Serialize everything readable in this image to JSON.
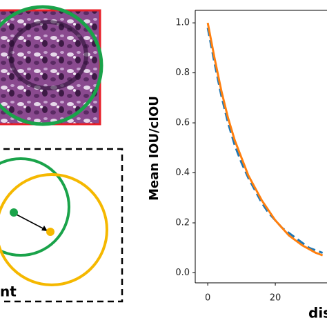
{
  "chart_data": {
    "type": "line",
    "y_label": "Mean IOU/cIOU",
    "x_label": "dis",
    "x": [
      0,
      2,
      4,
      6,
      8,
      10,
      12,
      14,
      16,
      18,
      20,
      22,
      24,
      26,
      28,
      30,
      32,
      34
    ],
    "series": [
      {
        "color": "#1f77b4",
        "dash": true,
        "values": [
          0.98,
          0.84,
          0.71,
          0.6,
          0.51,
          0.44,
          0.38,
          0.33,
          0.28,
          0.24,
          0.21,
          0.18,
          0.16,
          0.14,
          0.12,
          0.1,
          0.09,
          0.08
        ]
      },
      {
        "color": "#ff7f0e",
        "dash": false,
        "values": [
          1.0,
          0.86,
          0.73,
          0.62,
          0.53,
          0.46,
          0.39,
          0.34,
          0.29,
          0.25,
          0.21,
          0.18,
          0.15,
          0.13,
          0.11,
          0.095,
          0.08,
          0.07
        ]
      }
    ],
    "xlim": [
      -3.7,
      35.3
    ],
    "ylim": [
      -0.04,
      1.05
    ],
    "xticks": [
      0,
      20
    ],
    "yticks": [
      {
        "value": 0,
        "label": "0.0"
      },
      {
        "value": 0.2,
        "label": "0.2"
      },
      {
        "value": 0.4,
        "label": "0.4"
      },
      {
        "value": 0.6,
        "label": "0.6"
      },
      {
        "value": 0.8,
        "label": "0.8"
      },
      {
        "value": 1,
        "label": "1.0"
      }
    ]
  },
  "left_panel": {
    "label": "nt"
  }
}
